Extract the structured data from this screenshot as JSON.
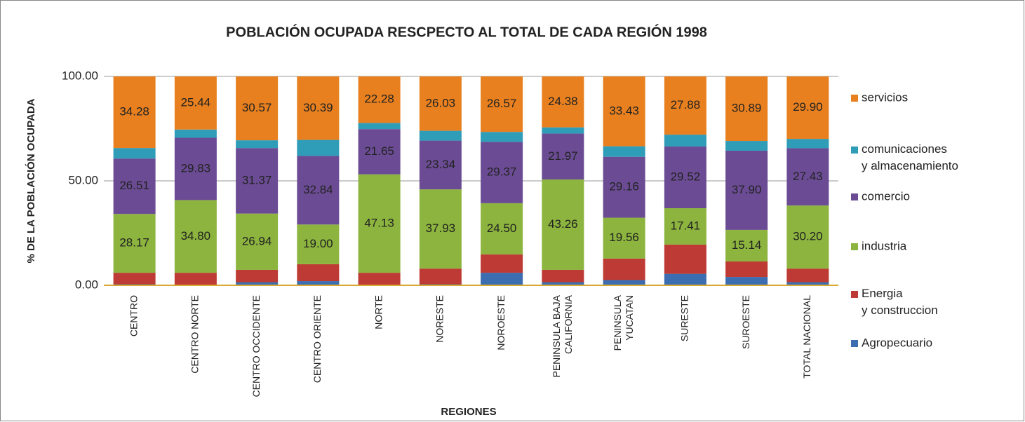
{
  "chart_data": {
    "type": "stacked_bar",
    "title": "POBLACIÓN OCUPADA RESCPECTO AL TOTAL DE CADA REGIÓN 1998",
    "x_label": "REGIONES",
    "y_label": "% DE LA POBLACIÓN OCUPADA",
    "categories": [
      "CENTRO",
      "CENTRO NORTE",
      "CENTRO OCCIDENTE",
      "CENTRO ORIENTE",
      "NORTE",
      "NORESTE",
      "NOROESTE",
      "PENINSULA BAJA\nCALIFORNIA",
      "PENINSULA\nYUCATAN",
      "SURESTE",
      "SUROESTE",
      "TOTAL NACIONAL"
    ],
    "series": [
      {
        "name": "Agropecuario",
        "color": "#3c6db0",
        "values": [
          0.5,
          0.3,
          1.5,
          2,
          0.3,
          0.5,
          6,
          1.5,
          2.5,
          5.5,
          4,
          1.5
        ]
      },
      {
        "name": "Energia\ny construccion",
        "color": "#be3a34",
        "values": [
          5.5,
          5.7,
          5.9,
          8.1,
          5.7,
          7.5,
          8.8,
          5.9,
          10.3,
          14,
          7.4,
          6.5
        ]
      },
      {
        "name": "industria",
        "color": "#8cb43e",
        "values": [
          28.17,
          34.8,
          26.94,
          19.0,
          47.13,
          37.93,
          24.5,
          43.26,
          19.56,
          17.41,
          15.14,
          30.2
        ],
        "value_labels": [
          "28.17",
          "34.80",
          "26.94",
          "19.00",
          "47.13",
          "37.93",
          "24.50",
          "43.26",
          "19.56",
          "17.41",
          "15.14",
          "30.20"
        ]
      },
      {
        "name": "comercio",
        "color": "#6b4c94",
        "values": [
          26.51,
          29.83,
          31.37,
          32.84,
          21.65,
          23.34,
          29.37,
          21.97,
          29.16,
          29.52,
          37.9,
          27.43
        ],
        "value_labels": [
          "26.51",
          "29.83",
          "31.37",
          "32.84",
          "21.65",
          "23.34",
          "29.37",
          "21.97",
          "29.16",
          "29.52",
          "37.90",
          "27.43"
        ]
      },
      {
        "name": "comunicaciones\ny almacenamiento",
        "color": "#2f9cb8",
        "values": [
          5.04,
          3.93,
          3.72,
          7.67,
          2.94,
          4.7,
          4.76,
          2.99,
          5.05,
          5.69,
          4.67,
          4.47
        ]
      },
      {
        "name": "servicios",
        "color": "#e8801f",
        "values": [
          34.28,
          25.44,
          30.57,
          30.39,
          22.28,
          26.03,
          26.57,
          24.38,
          33.43,
          27.88,
          30.89,
          29.9
        ],
        "value_labels": [
          "34.28",
          "25.44",
          "30.57",
          "30.39",
          "22.28",
          "26.03",
          "26.57",
          "24.38",
          "33.43",
          "27.88",
          "30.89",
          "29.90"
        ]
      }
    ],
    "ylim": [
      0,
      100
    ],
    "yticks": [
      {
        "value": 0,
        "label": "0.00"
      },
      {
        "value": 50,
        "label": "50.00"
      },
      {
        "value": 100,
        "label": "100.00"
      }
    ],
    "grid": true,
    "legend": "right"
  }
}
